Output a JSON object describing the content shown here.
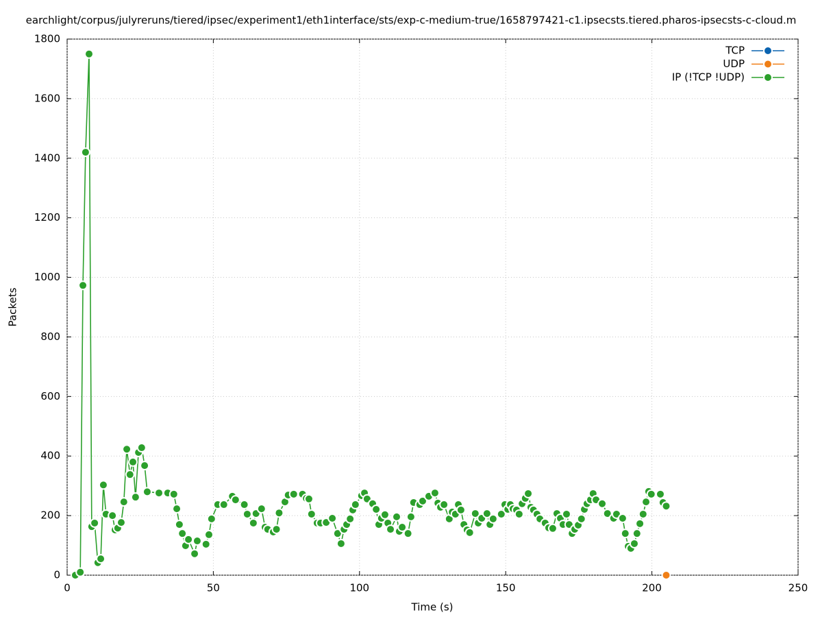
{
  "chart_data": {
    "type": "line",
    "title": "earchlight/corpus/julyreruns/tiered/ipsec/experiment1/eth1interface/sts/exp-c-medium-true/1658797421-c1.ipsecsts.tiered.pharos-ipsecsts-c-cloud.m",
    "x_label": "Time (s)",
    "y_label": "Packets",
    "xlim": [
      0,
      250
    ],
    "xticks": [
      0,
      50,
      100,
      150,
      200,
      250
    ],
    "ylim": [
      0,
      1800
    ],
    "yticks": [
      0,
      200,
      400,
      600,
      800,
      1000,
      1200,
      1400,
      1600,
      1800
    ],
    "grid": true,
    "legend": "top-right",
    "series": [
      {
        "name": "TCP",
        "color": "#0a63b0",
        "x": [],
        "values": []
      },
      {
        "name": "UDP",
        "color": "#f07f16",
        "x": [
          204.9
        ],
        "values": [
          0
        ]
      },
      {
        "name": "IP (!TCP  !UDP)",
        "color": "#2ca02c",
        "x": [
          2.8,
          4.5,
          5.4,
          6.3,
          7.5,
          8.4,
          9.4,
          10.5,
          11.5,
          12.4,
          13.3,
          15.5,
          16.4,
          17.3,
          18.5,
          19.4,
          20.4,
          21.5,
          22.5,
          23.4,
          24.4,
          25.5,
          26.5,
          27.4,
          31.4,
          34.4,
          36.5,
          37.5,
          38.4,
          39.4,
          40.5,
          41.5,
          43.6,
          44.5,
          47.5,
          48.5,
          49.4,
          51.5,
          53.6,
          56.5,
          57.6,
          60.6,
          61.6,
          63.7,
          64.6,
          66.5,
          67.7,
          68.6,
          70.5,
          71.6,
          72.5,
          74.5,
          75.6,
          77.5,
          80.5,
          81.8,
          82.7,
          83.6,
          85.5,
          86.7,
          88.6,
          90.7,
          92.5,
          93.7,
          94.7,
          95.6,
          96.8,
          97.7,
          98.6,
          100.7,
          101.7,
          102.6,
          104.5,
          105.7,
          106.6,
          107.5,
          108.7,
          109.7,
          110.6,
          112.7,
          113.6,
          114.6,
          116.6,
          117.6,
          118.5,
          120.6,
          121.6,
          123.7,
          125.8,
          126.8,
          127.7,
          128.9,
          130.7,
          131.7,
          132.8,
          133.8,
          134.7,
          135.7,
          136.8,
          137.7,
          139.6,
          140.6,
          141.8,
          143.6,
          144.6,
          145.7,
          148.5,
          149.7,
          150.7,
          151.6,
          152.5,
          153.7,
          154.6,
          155.6,
          156.7,
          157.7,
          158.6,
          159.5,
          160.7,
          161.7,
          163.5,
          164.7,
          166.1,
          167.5,
          168.7,
          169.6,
          170.8,
          171.7,
          172.7,
          173.6,
          174.8,
          175.9,
          176.9,
          177.8,
          179.0,
          179.9,
          180.9,
          183.0,
          184.8,
          186.9,
          187.9,
          190.0,
          190.9,
          191.9,
          192.8,
          194.0,
          194.9,
          195.9,
          197.0,
          198.0,
          198.9,
          199.8,
          202.9,
          203.8,
          204.9
        ],
        "values": [
          0,
          10,
          973,
          1420,
          1750,
          163,
          175,
          42,
          55,
          303,
          205,
          200,
          152,
          158,
          177,
          246,
          423,
          338,
          380,
          262,
          412,
          428,
          368,
          280,
          276,
          276,
          272,
          223,
          170,
          140,
          99,
          120,
          72,
          115,
          104,
          136,
          189,
          237,
          237,
          265,
          253,
          237,
          205,
          175,
          207,
          223,
          161,
          154,
          145,
          154,
          209,
          246,
          269,
          272,
          272,
          258,
          256,
          205,
          175,
          175,
          177,
          191,
          140,
          106,
          154,
          170,
          189,
          219,
          237,
          267,
          276,
          256,
          240,
          221,
          170,
          191,
          203,
          175,
          154,
          196,
          147,
          161,
          140,
          196,
          244,
          237,
          249,
          265,
          276,
          242,
          228,
          237,
          189,
          212,
          205,
          237,
          219,
          170,
          152,
          143,
          207,
          175,
          191,
          207,
          170,
          189,
          205,
          237,
          221,
          237,
          223,
          219,
          205,
          240,
          258,
          274,
          228,
          219,
          205,
          189,
          175,
          159,
          157,
          207,
          191,
          170,
          205,
          170,
          140,
          154,
          168,
          189,
          221,
          240,
          253,
          274,
          253,
          240,
          207,
          191,
          205,
          191,
          140,
          97,
          90,
          106,
          140,
          173,
          205,
          246,
          281,
          272,
          272,
          244,
          232
        ]
      }
    ]
  }
}
